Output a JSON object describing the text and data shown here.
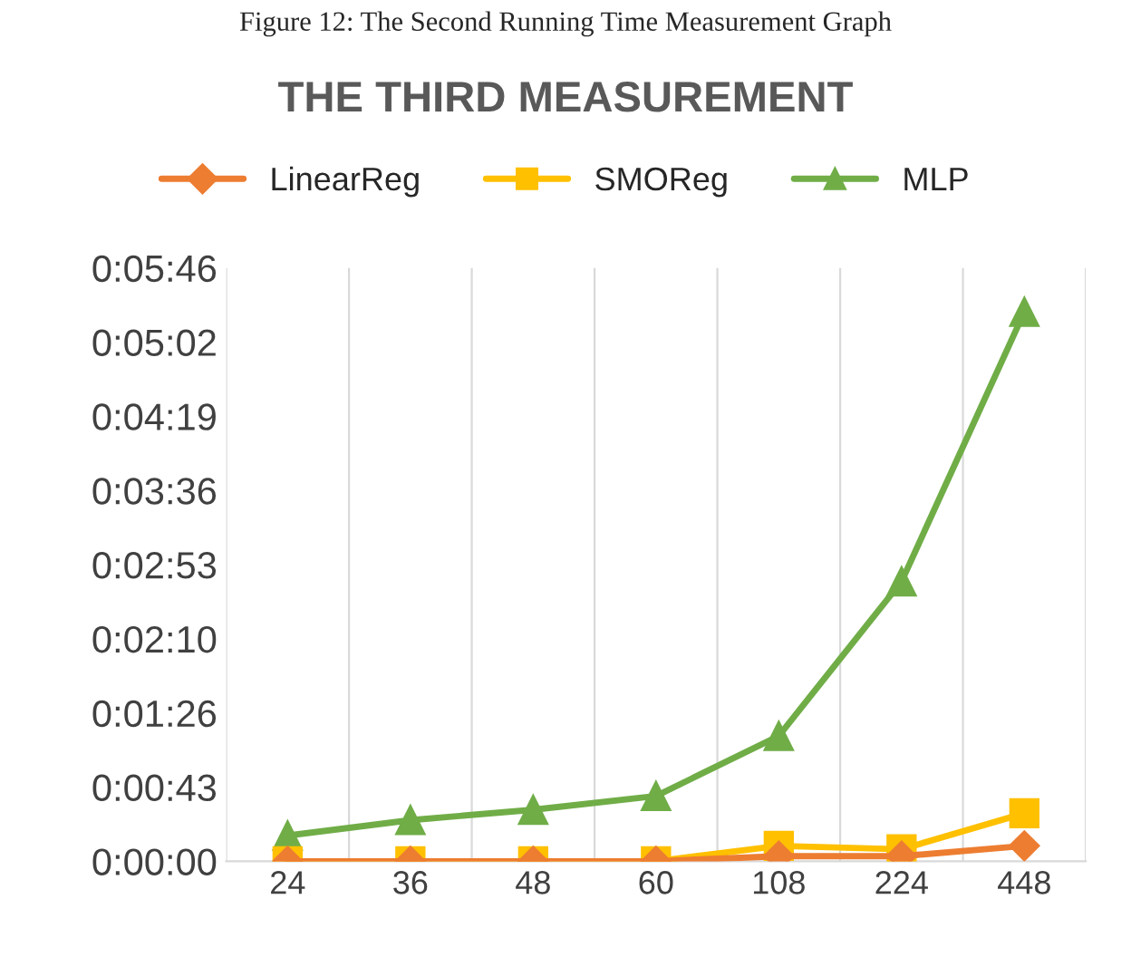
{
  "chart_data": {
    "type": "line",
    "title": "THE THIRD MEASUREMENT",
    "annotations": [
      "Figure 12: The Second Running Time Measurement Graph"
    ],
    "categories": [
      "24",
      "36",
      "48",
      "60",
      "108",
      "224",
      "448"
    ],
    "series": [
      {
        "name": "LinearReg",
        "color": "#ed7d31",
        "marker": "diamond",
        "values": [
          0,
          0,
          0,
          0,
          3,
          3,
          9
        ]
      },
      {
        "name": "SMOReg",
        "color": "#ffc000",
        "marker": "square",
        "values": [
          0,
          0,
          0,
          0,
          9,
          7,
          28
        ]
      },
      {
        "name": "MLP",
        "color": "#70ad47",
        "marker": "triangle",
        "values": [
          15,
          24,
          30,
          38,
          73,
          163,
          320
        ]
      }
    ],
    "ylim": [
      0,
      345.6
    ],
    "yticks": [
      {
        "value": 0,
        "label": "0:00:00"
      },
      {
        "value": 43.2,
        "label": "0:00:43"
      },
      {
        "value": 86.4,
        "label": "0:01:26"
      },
      {
        "value": 129.6,
        "label": "0:02:10"
      },
      {
        "value": 172.8,
        "label": "0:02:53"
      },
      {
        "value": 216,
        "label": "0:03:36"
      },
      {
        "value": 259.2,
        "label": "0:04:19"
      },
      {
        "value": 302.4,
        "label": "0:05:02"
      },
      {
        "value": 345.6,
        "label": "0:05:46"
      }
    ],
    "grid": "x",
    "legend": "top",
    "line_style": "solid"
  }
}
